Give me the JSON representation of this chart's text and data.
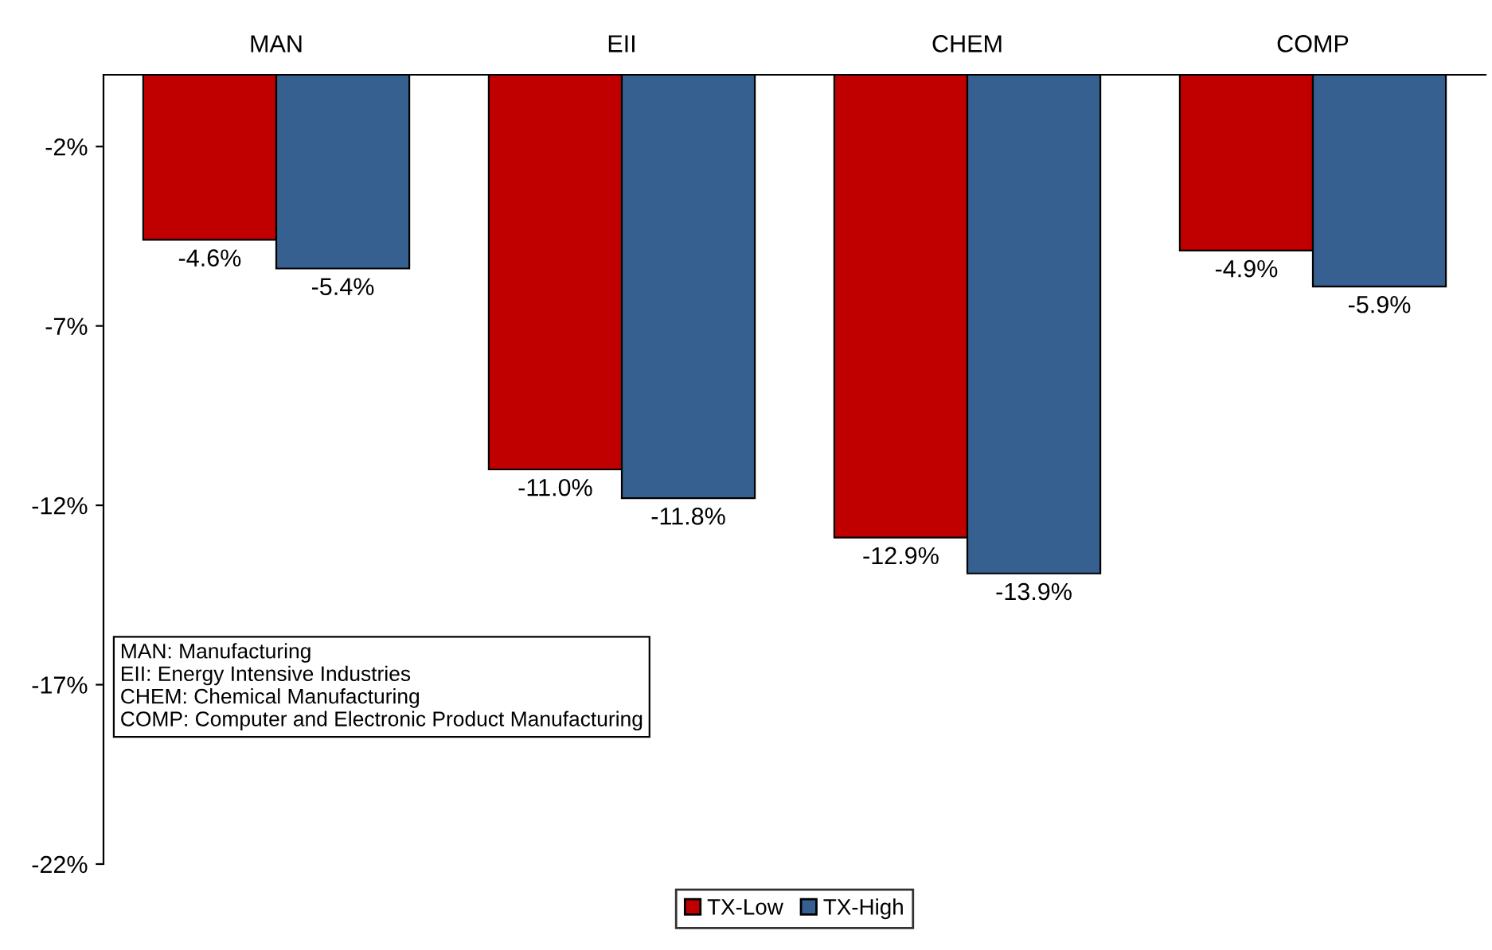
{
  "chart_data": {
    "type": "bar",
    "categories": [
      "MAN",
      "EII",
      "CHEM",
      "COMP"
    ],
    "series": [
      {
        "name": "TX-Low",
        "color": "#c00000",
        "values": [
          -4.6,
          -11.0,
          -12.9,
          -4.9
        ],
        "value_labels": [
          "-4.6%",
          "-11.0%",
          "-12.9%",
          "-4.9%"
        ]
      },
      {
        "name": "TX-High",
        "color": "#36608f",
        "values": [
          -5.4,
          -11.8,
          -13.9,
          -5.9
        ],
        "value_labels": [
          "-5.4%",
          "-11.8%",
          "-13.9%",
          "-5.9%"
        ]
      }
    ],
    "ylim": [
      -22,
      0
    ],
    "yticks": [
      {
        "value": -2,
        "label": "-2%"
      },
      {
        "value": -7,
        "label": "-7%"
      },
      {
        "value": -12,
        "label": "-12%"
      },
      {
        "value": -17,
        "label": "-17%"
      },
      {
        "value": -22,
        "label": "-22%"
      }
    ],
    "annotations": [
      "MAN: Manufacturing\nEII: Energy Intensive Industries\nCHEM: Chemical Manufacturing\nCOMP: Computer and Electronic Product Manufacturing"
    ],
    "grid": false,
    "legend": "bottom"
  }
}
